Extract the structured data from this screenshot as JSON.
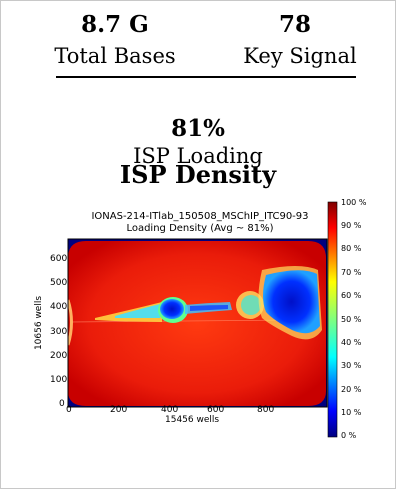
{
  "stats": {
    "total_bases_value": "8.7 G",
    "total_bases_label": "Total Bases",
    "key_signal_value": "78",
    "key_signal_label": "Key Signal",
    "isp_loading_value": "81%",
    "isp_loading_label": "ISP Loading"
  },
  "heading": "ISP Density",
  "chart_data": {
    "type": "heatmap",
    "title_line1": "IONAS-214-ITlab_150508_MSChIP_ITC90-93",
    "title_line2": "Loading Density (Avg ~ 81%)",
    "xlabel": "15456 wells",
    "ylabel": "10656 wells",
    "x_ticks": [
      "0",
      "200",
      "400",
      "600",
      "800"
    ],
    "y_ticks": [
      "0",
      "100",
      "200",
      "300",
      "400",
      "500",
      "600"
    ],
    "xlim": [
      0,
      990
    ],
    "ylim": [
      0,
      680
    ],
    "average_loading_percent": 81,
    "colorbar": {
      "ticks": [
        "100 %",
        "90 %",
        "80 %",
        "70 %",
        "60 %",
        "50 %",
        "40 %",
        "30 %",
        "20 %",
        "10 %",
        "0 %"
      ],
      "range": [
        0,
        100
      ]
    }
  }
}
